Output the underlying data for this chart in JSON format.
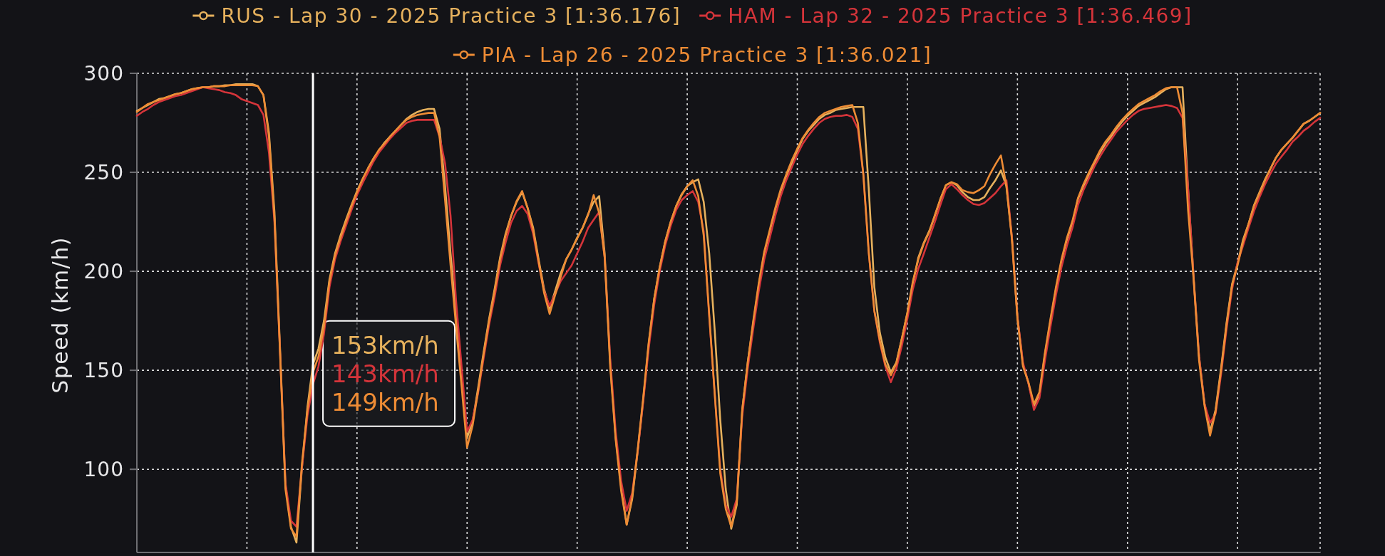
{
  "chart_data": {
    "type": "line",
    "ylabel": "Speed (km/h)",
    "ylim": [
      58,
      300
    ],
    "yticks": [
      100,
      150,
      200,
      250,
      300
    ],
    "grid": true,
    "legend": "top",
    "categories": [
      null,
      null,
      null,
      null,
      null,
      null,
      null,
      null,
      null,
      null,
      null,
      null,
      null,
      null,
      null,
      null,
      null,
      null,
      null,
      null,
      null,
      null,
      null,
      null,
      null,
      null,
      null,
      null,
      null,
      null,
      null,
      null,
      null,
      null,
      null,
      null,
      null,
      null,
      null,
      null,
      null,
      null,
      null,
      null,
      null,
      null,
      null,
      null,
      null,
      null,
      null,
      null,
      null,
      null,
      null,
      null,
      null,
      null,
      null,
      null,
      null,
      null,
      null,
      null,
      null,
      null,
      null,
      null,
      null,
      null,
      null,
      null,
      null,
      null,
      null,
      null,
      null,
      null,
      null,
      null,
      null,
      null,
      null,
      null,
      null,
      null,
      null,
      null,
      null,
      null,
      null,
      null,
      null,
      null,
      null,
      null,
      null,
      null,
      null,
      null,
      null,
      null,
      null,
      null,
      null,
      null,
      null,
      null,
      null,
      null,
      null,
      null,
      null,
      null,
      null,
      null,
      null,
      null,
      null,
      null,
      null,
      null,
      null,
      null,
      null,
      null,
      null,
      null,
      null,
      null,
      null,
      null,
      null,
      null,
      null,
      null,
      null,
      null,
      null,
      null,
      null,
      null,
      null,
      null,
      null,
      null,
      null,
      null,
      null,
      null,
      null,
      null,
      null,
      null,
      null,
      null,
      null,
      null,
      null,
      null,
      null,
      null,
      null,
      null,
      null,
      null,
      null,
      null,
      null,
      null,
      null,
      null,
      null,
      null,
      null,
      null,
      null,
      null,
      null,
      null,
      null,
      null,
      null,
      null,
      null,
      null,
      null,
      null,
      null,
      null,
      null,
      null,
      null,
      null,
      null,
      null,
      null,
      null,
      null,
      null,
      null,
      null,
      null,
      null,
      null,
      null,
      null,
      null,
      null,
      null,
      null,
      null,
      null,
      null,
      null,
      null
    ],
    "series": [
      {
        "name": "RUS - Lap 30 - 2025 Practice 3 [1:36.176]",
        "color": "#e6b15d",
        "values": [
          281,
          282.5,
          284,
          285.5,
          287,
          287.5,
          288.5,
          289.5,
          290,
          291,
          292,
          292.5,
          293,
          293,
          293.5,
          293.5,
          294,
          294,
          294.5,
          294.5,
          294.5,
          294.5,
          293.5,
          289,
          270,
          230,
          162,
          92,
          71,
          63,
          101,
          131.5,
          153,
          161,
          175,
          196,
          209,
          218,
          226,
          233.5,
          240.5,
          246.5,
          252,
          257,
          261,
          265,
          268,
          271,
          274,
          277,
          279,
          280.5,
          281.5,
          282,
          282,
          272,
          243,
          209,
          178,
          147,
          116,
          124,
          141,
          159,
          176,
          191,
          207,
          219,
          228,
          235,
          240,
          232,
          222,
          206,
          191,
          181,
          190,
          199,
          206,
          211,
          217,
          222,
          229,
          235,
          238,
          209,
          154,
          116,
          91,
          72,
          85,
          109,
          135,
          163,
          186,
          202,
          215,
          225,
          233,
          239,
          243,
          245,
          246.5,
          235,
          209,
          170,
          125,
          90,
          70,
          82,
          130,
          154,
          174,
          193,
          209,
          220,
          231,
          240.5,
          248,
          254.5,
          261,
          267,
          271,
          274,
          277,
          279,
          280,
          281.5,
          282,
          282.5,
          283,
          283,
          283,
          241,
          192,
          169,
          156.5,
          149,
          154,
          166,
          179,
          194,
          207,
          214.5,
          220.5,
          228,
          236.5,
          243.5,
          245,
          243.5,
          240,
          237.5,
          236,
          236,
          237.5,
          242,
          246,
          251,
          243,
          217,
          177,
          153,
          143.5,
          132,
          138,
          158,
          175,
          191,
          205,
          216,
          224.5,
          236.5,
          243,
          249,
          254.5,
          260,
          264.5,
          268,
          272,
          275.5,
          278.5,
          281,
          283.5,
          285,
          286.5,
          288,
          290,
          292,
          293,
          293,
          293,
          242,
          197.5,
          157,
          133,
          119,
          130,
          151,
          174,
          193.5,
          204,
          216,
          224,
          233.5,
          240,
          246.5,
          252,
          257.5,
          261.5,
          264.5,
          267.5,
          271,
          274.5,
          276,
          278,
          280
        ],
        "value_labels": [
          null,
          null,
          null,
          null,
          null,
          null,
          null,
          null,
          null,
          null,
          null,
          null,
          null,
          null,
          null,
          null,
          null,
          null,
          null,
          null,
          null,
          null,
          null,
          null,
          null,
          null,
          null,
          null,
          null,
          null,
          null,
          null,
          "153km/h",
          null,
          null,
          null,
          null,
          null,
          null,
          null,
          null,
          null,
          null,
          null,
          null,
          null,
          null,
          null,
          null,
          null,
          null,
          null,
          null,
          null,
          null,
          null,
          null,
          null,
          null,
          null,
          null,
          null,
          null,
          null,
          null,
          null,
          null,
          null,
          null,
          null,
          null,
          null,
          null,
          null,
          null,
          null,
          null,
          null,
          null,
          null,
          null,
          null,
          null,
          null,
          null,
          null,
          null,
          null,
          null,
          null,
          null,
          null,
          null,
          null,
          null,
          null,
          null,
          null,
          null,
          null,
          null,
          null,
          null,
          null,
          null,
          null,
          null,
          null,
          null,
          null,
          null,
          null,
          null,
          null,
          null,
          null,
          null,
          null,
          null,
          null,
          null,
          null,
          null,
          null,
          null,
          null,
          null,
          null,
          null,
          null,
          null,
          null,
          null,
          null,
          null,
          null,
          null,
          null,
          null,
          null,
          null,
          null,
          null,
          null,
          null,
          null,
          null,
          null,
          null,
          null,
          null,
          null,
          null,
          null,
          null,
          null,
          null,
          null,
          null,
          null,
          null,
          null,
          null,
          null,
          null,
          null,
          null,
          null,
          null,
          null,
          null,
          null,
          null,
          null,
          null,
          null,
          null,
          null,
          null,
          null,
          null,
          null,
          null,
          null,
          null,
          null,
          null,
          null,
          null,
          null,
          null,
          null,
          null,
          null,
          null,
          null,
          null,
          null,
          null,
          null,
          null,
          null,
          null,
          null,
          null,
          null,
          null,
          null,
          null,
          null,
          null,
          null,
          null,
          null,
          null,
          null
        ]
      },
      {
        "name": "HAM - Lap 32 - 2025 Practice 3 [1:36.469]",
        "color": "#d5343a",
        "values": [
          278.5,
          280.5,
          282,
          284,
          285.5,
          286.5,
          287.5,
          288.5,
          289,
          290,
          291,
          292,
          293,
          292.5,
          292,
          291.5,
          290.5,
          290,
          289,
          287,
          286,
          285,
          284,
          279,
          260,
          225,
          160,
          93,
          74,
          71,
          101,
          127,
          143,
          152,
          168.5,
          192,
          206,
          215,
          223,
          231,
          238.5,
          244.5,
          250,
          255.5,
          260,
          263.5,
          267,
          270,
          272.5,
          275,
          276,
          276.5,
          276.5,
          276.5,
          276.5,
          268,
          254.5,
          228,
          185,
          152,
          119,
          125,
          138.5,
          156,
          173,
          187,
          203,
          214.5,
          224.5,
          230.5,
          233,
          229,
          219,
          204,
          190,
          182.5,
          188.5,
          195,
          199,
          203,
          209,
          215,
          222,
          226,
          230,
          207,
          156,
          119,
          94,
          79,
          88,
          109,
          134,
          161,
          183,
          200,
          213,
          223,
          231,
          236,
          238.5,
          240.5,
          235,
          220,
          177,
          138,
          100,
          82,
          76,
          85,
          127,
          151,
          171,
          190,
          206,
          217,
          228,
          238,
          246,
          252.5,
          259,
          264.5,
          268.5,
          272,
          275,
          277,
          278,
          278.5,
          278.5,
          279,
          278,
          272,
          249,
          209,
          180,
          164,
          152,
          144,
          151,
          162.5,
          176,
          191,
          201.5,
          209,
          217,
          225,
          233.5,
          241.5,
          244,
          241.5,
          238.5,
          236,
          234,
          233.5,
          234.5,
          237,
          239.5,
          243,
          246,
          217,
          177,
          154,
          143.5,
          130,
          136,
          155,
          172,
          188,
          202,
          213,
          222,
          233.5,
          241,
          247,
          253,
          258,
          262.5,
          266.5,
          270.5,
          273.5,
          276.5,
          279,
          281,
          282,
          282.5,
          283,
          283.5,
          284,
          283.5,
          282.5,
          277.5,
          242,
          197,
          157,
          133,
          123.5,
          128,
          148,
          171,
          191,
          204.5,
          213,
          222,
          230.5,
          237.5,
          244,
          249.5,
          254.5,
          258,
          261.5,
          265.5,
          268,
          271,
          273,
          275.5,
          277.5
        ],
        "value_labels": [
          null,
          null,
          null,
          null,
          null,
          null,
          null,
          null,
          null,
          null,
          null,
          null,
          null,
          null,
          null,
          null,
          null,
          null,
          null,
          null,
          null,
          null,
          null,
          null,
          null,
          null,
          null,
          null,
          null,
          null,
          null,
          null,
          "143km/h",
          null,
          null,
          null,
          null,
          null,
          null,
          null,
          null,
          null,
          null,
          null,
          null,
          null,
          null,
          null,
          null,
          null,
          null,
          null,
          null,
          null,
          null,
          null,
          null,
          null,
          null,
          null,
          null,
          null,
          null,
          null,
          null,
          null,
          null,
          null,
          null,
          null,
          null,
          null,
          null,
          null,
          null,
          null,
          null,
          null,
          null,
          null,
          null,
          null,
          null,
          null,
          null,
          null,
          null,
          null,
          null,
          null,
          null,
          null,
          null,
          null,
          null,
          null,
          null,
          null,
          null,
          null,
          null,
          null,
          null,
          null,
          null,
          null,
          null,
          null,
          null,
          null,
          null,
          null,
          null,
          null,
          null,
          null,
          null,
          null,
          null,
          null,
          null,
          null,
          null,
          null,
          null,
          null,
          null,
          null,
          null,
          null,
          null,
          null,
          null,
          null,
          null,
          null,
          null,
          null,
          null,
          null,
          null,
          null,
          null,
          null,
          null,
          null,
          null,
          null,
          null,
          null,
          null,
          null,
          null,
          null,
          null,
          null,
          null,
          null,
          null,
          null,
          null,
          null,
          null,
          null,
          null,
          null,
          null,
          null,
          null,
          null,
          null,
          null,
          null,
          null,
          null,
          null,
          null,
          null,
          null,
          null,
          null,
          null,
          null,
          null,
          null,
          null,
          null,
          null,
          null,
          null,
          null,
          null,
          null,
          null,
          null,
          null,
          null,
          null,
          null,
          null,
          null,
          null,
          null,
          null,
          null,
          null,
          null,
          null,
          null,
          null,
          null,
          null,
          null,
          null,
          null,
          null
        ]
      },
      {
        "name": "PIA - Lap 26 - 2025 Practice 3 [1:36.021]",
        "color": "#ee8c35",
        "values": [
          280.5,
          282.5,
          284.5,
          285.5,
          286.5,
          287.5,
          288.5,
          289.5,
          290,
          291,
          292,
          292.5,
          293,
          293,
          293.5,
          293.5,
          293.5,
          294,
          294,
          294,
          294,
          294,
          293.5,
          289,
          268,
          227,
          160,
          90,
          70,
          66,
          103,
          130,
          149,
          157,
          172,
          195,
          208,
          217,
          225,
          233,
          240,
          246.5,
          252,
          257,
          261.5,
          264.5,
          268,
          271,
          274,
          276.5,
          278,
          279,
          279.5,
          280,
          280,
          268,
          236,
          203,
          172,
          142,
          111,
          122,
          139.5,
          158,
          175,
          190,
          206,
          218,
          228,
          235.5,
          240.5,
          232,
          221,
          205,
          189,
          178.5,
          188,
          197,
          206,
          211,
          216.5,
          222,
          228.5,
          238.5,
          229.5,
          207,
          152,
          115,
          89,
          72,
          86,
          110,
          136,
          164,
          186,
          202,
          215,
          225,
          233,
          238.5,
          243,
          246,
          238,
          218,
          178,
          138,
          98,
          80,
          71,
          83,
          130,
          154,
          175,
          194,
          210,
          221,
          232,
          241.5,
          249,
          256,
          262,
          267.5,
          271.5,
          275,
          278,
          280,
          281,
          282,
          283,
          283.5,
          284,
          275,
          249,
          209,
          180,
          165,
          153,
          147.5,
          153.5,
          166,
          179,
          195,
          206,
          214,
          220,
          228.5,
          236.5,
          243.5,
          245,
          244,
          241,
          240,
          239.5,
          241,
          243,
          249,
          254,
          258.5,
          243,
          216,
          176,
          152,
          144,
          133,
          139,
          159,
          176,
          192,
          206,
          217,
          225.5,
          237,
          244,
          250,
          255.5,
          261,
          265.5,
          269,
          273,
          276.5,
          279.5,
          282,
          284.5,
          286,
          287.5,
          289,
          291,
          292.5,
          293,
          293,
          280,
          231,
          196.5,
          155,
          132,
          117,
          129,
          150,
          173,
          193,
          203,
          215,
          224,
          233,
          239.5,
          246,
          252,
          257.5,
          261.5,
          264.5,
          267.5,
          271,
          274.5,
          276,
          278,
          280
        ],
        "value_labels": [
          null,
          null,
          null,
          null,
          null,
          null,
          null,
          null,
          null,
          null,
          null,
          null,
          null,
          null,
          null,
          null,
          null,
          null,
          null,
          null,
          null,
          null,
          null,
          null,
          null,
          null,
          null,
          null,
          null,
          null,
          null,
          null,
          "149km/h",
          null,
          null,
          null,
          null,
          null,
          null,
          null,
          null,
          null,
          null,
          null,
          null,
          null,
          null,
          null,
          null,
          null,
          null,
          null,
          null,
          null,
          null,
          null,
          null,
          null,
          null,
          null,
          null,
          null,
          null,
          null,
          null,
          null,
          null,
          null,
          null,
          null,
          null,
          null,
          null,
          null,
          null,
          null,
          null,
          null,
          null,
          null,
          null,
          null,
          null,
          null,
          null,
          null,
          null,
          null,
          null,
          null,
          null,
          null,
          null,
          null,
          null,
          null,
          null,
          null,
          null,
          null,
          null,
          null,
          null,
          null,
          null,
          null,
          null,
          null,
          null,
          null,
          null,
          null,
          null,
          null,
          null,
          null,
          null,
          null,
          null,
          null,
          null,
          null,
          null,
          null,
          null,
          null,
          null,
          null,
          null,
          null,
          null,
          null,
          null,
          null,
          null,
          null,
          null,
          null,
          null,
          null,
          null,
          null,
          null,
          null,
          null,
          null,
          null,
          null,
          null,
          null,
          null,
          null,
          null,
          null,
          null,
          null,
          null,
          null,
          null,
          null,
          null,
          null,
          null,
          null,
          null,
          null,
          null,
          null,
          null,
          null,
          null,
          null,
          null,
          null,
          null,
          null,
          null,
          null,
          null,
          null,
          null,
          null,
          null,
          null,
          null,
          null,
          null,
          null,
          null,
          null,
          null,
          null,
          null,
          null,
          null,
          null,
          null,
          null,
          null,
          null,
          null,
          null,
          null,
          null,
          null,
          null,
          null,
          null,
          null,
          null,
          null,
          null,
          null,
          null,
          null,
          null
        ]
      }
    ]
  }
}
